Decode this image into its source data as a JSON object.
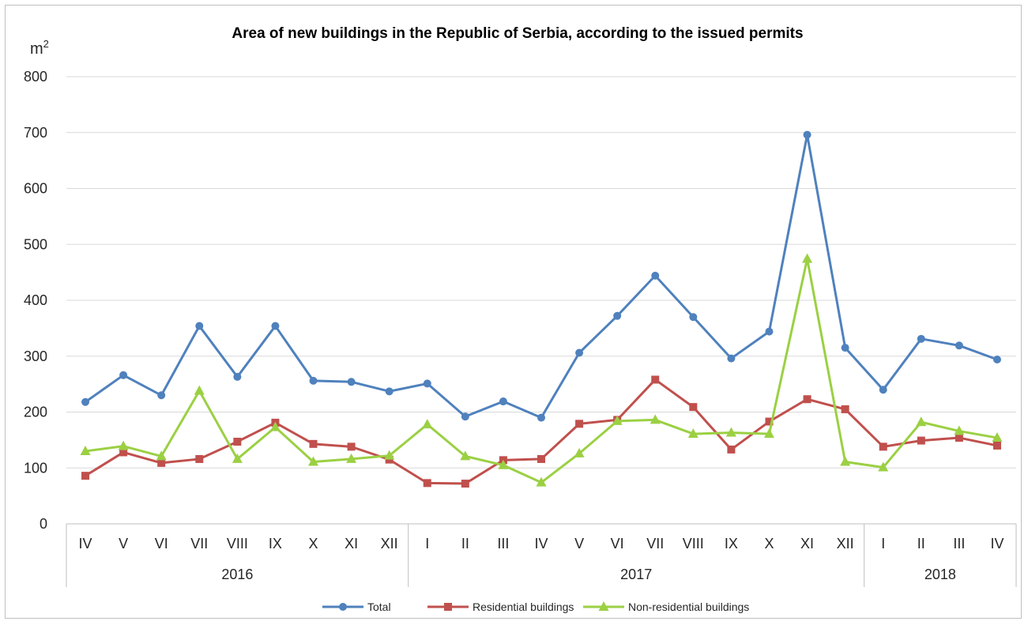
{
  "chart_data": {
    "type": "line",
    "title": "Area of new buildings in the Republic of Serbia, according to the issued permits",
    "ylabel": "m",
    "ylabel_sup": "2",
    "ylim": [
      0,
      800
    ],
    "yticks": [
      0,
      100,
      200,
      300,
      400,
      500,
      600,
      700,
      800
    ],
    "grid": true,
    "legend_position": "bottom",
    "categories": [
      "IV",
      "V",
      "VI",
      "VII",
      "VIII",
      "IX",
      "X",
      "XI",
      "XII",
      "I",
      "II",
      "III",
      "IV",
      "V",
      "VI",
      "VII",
      "VIII",
      "IX",
      "X",
      "XI",
      "XII",
      "I",
      "II",
      "III",
      "IV"
    ],
    "year_groups": [
      {
        "label": "2016",
        "count": 9
      },
      {
        "label": "2017",
        "count": 12
      },
      {
        "label": "2018",
        "count": 4
      }
    ],
    "series": [
      {
        "name": "Total",
        "color": "#4f81bd",
        "marker": "circle",
        "values": [
          218,
          266,
          230,
          354,
          263,
          354,
          256,
          254,
          237,
          251,
          192,
          219,
          190,
          306,
          372,
          444,
          370,
          296,
          344,
          696,
          315,
          240,
          331,
          319,
          294
        ]
      },
      {
        "name": "Residential buildings",
        "color": "#c0504d",
        "marker": "square",
        "values": [
          86,
          128,
          109,
          116,
          147,
          181,
          143,
          138,
          115,
          73,
          72,
          114,
          116,
          179,
          186,
          258,
          209,
          133,
          183,
          223,
          205,
          138,
          149,
          154,
          140
        ]
      },
      {
        "name": "Non-residential buildings",
        "color": "#9bd043",
        "marker": "triangle",
        "values": [
          130,
          139,
          121,
          238,
          116,
          173,
          111,
          116,
          122,
          178,
          121,
          105,
          74,
          126,
          184,
          186,
          161,
          163,
          161,
          474,
          111,
          101,
          182,
          166,
          154
        ]
      }
    ]
  }
}
